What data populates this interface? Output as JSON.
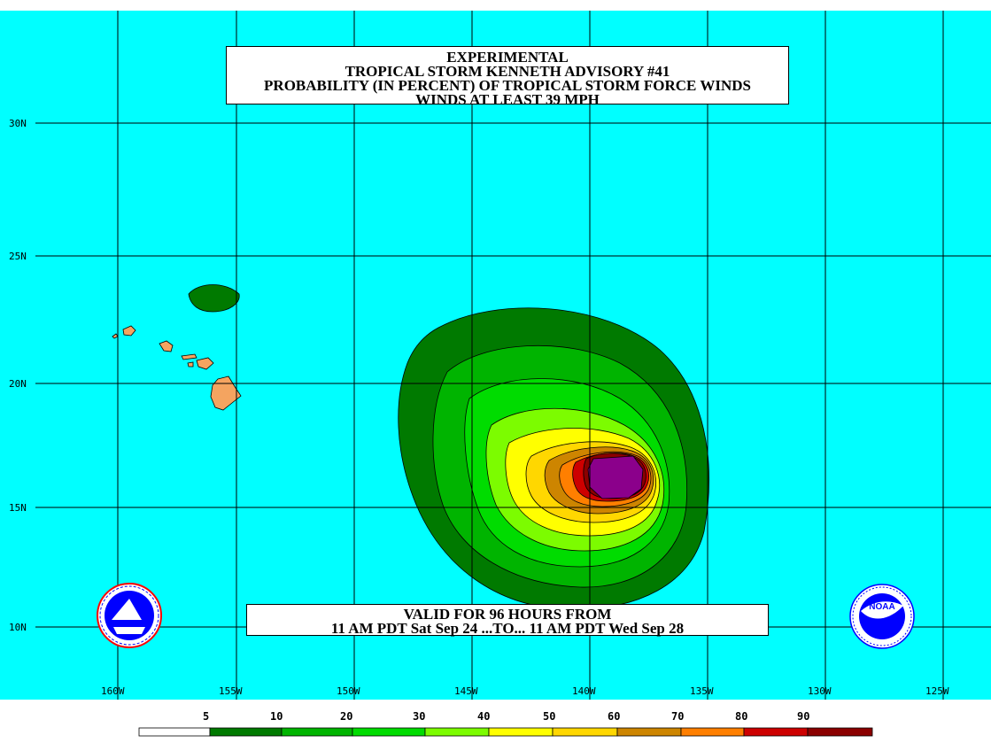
{
  "title": {
    "line1": "EXPERIMENTAL",
    "line2": "TROPICAL STORM KENNETH ADVISORY #41",
    "line3": "PROBABILITY (IN PERCENT) OF TROPICAL STORM FORCE WINDS",
    "line4": "WINDS AT LEAST 39 MPH"
  },
  "validity": {
    "line1": "VALID FOR 96 HOURS FROM",
    "line2": "11 AM PDT Sat Sep 24 ...TO... 11 AM PDT Wed Sep 28"
  },
  "latitude_labels": [
    "30N",
    "25N",
    "20N",
    "15N",
    "10N"
  ],
  "longitude_labels": [
    "160W",
    "155W",
    "150W",
    "145W",
    "140W",
    "135W",
    "130W",
    "125W"
  ],
  "scale": {
    "labels": [
      "5",
      "10",
      "20",
      "30",
      "40",
      "50",
      "60",
      "70",
      "80",
      "90"
    ],
    "colors": [
      "#ffffff",
      "#007a00",
      "#00b400",
      "#00dc00",
      "#7cfc00",
      "#ffff00",
      "#ffd700",
      "#cd8500",
      "#ff7f00",
      "#cd0000",
      "#8b0000",
      "#8b008b"
    ]
  },
  "colors": {
    "ocean": "#00ffff",
    "land": "#f4a460",
    "grid": "#000000"
  },
  "logos": {
    "left": "nws-logo",
    "right": "noaa-logo",
    "right_text": "NOAA"
  }
}
